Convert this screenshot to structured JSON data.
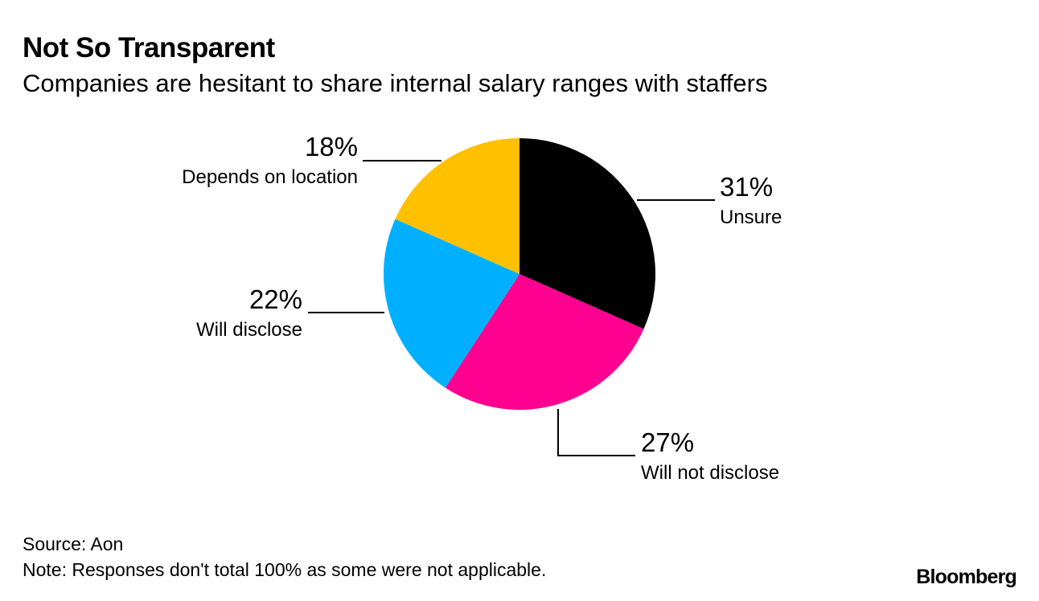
{
  "header": {
    "title": "Not So Transparent",
    "subtitle": "Companies are hesitant to share internal salary ranges with staffers"
  },
  "chart_data": {
    "type": "pie",
    "title": "Not So Transparent",
    "subtitle": "Companies are hesitant to share internal salary ranges with staffers",
    "unit": "%",
    "slices": [
      {
        "label": "Unsure",
        "value": 31,
        "display": "31%",
        "color": "#000000"
      },
      {
        "label": "Will not disclose",
        "value": 27,
        "display": "27%",
        "color": "#ff0090"
      },
      {
        "label": "Will disclose",
        "value": 22,
        "display": "22%",
        "color": "#00b0ff"
      },
      {
        "label": "Depends on location",
        "value": 18,
        "display": "18%",
        "color": "#ffc000"
      }
    ]
  },
  "footer": {
    "source": "Source: Aon",
    "note": "Note: Responses don't total 100% as some were not applicable.",
    "brand": "Bloomberg"
  }
}
